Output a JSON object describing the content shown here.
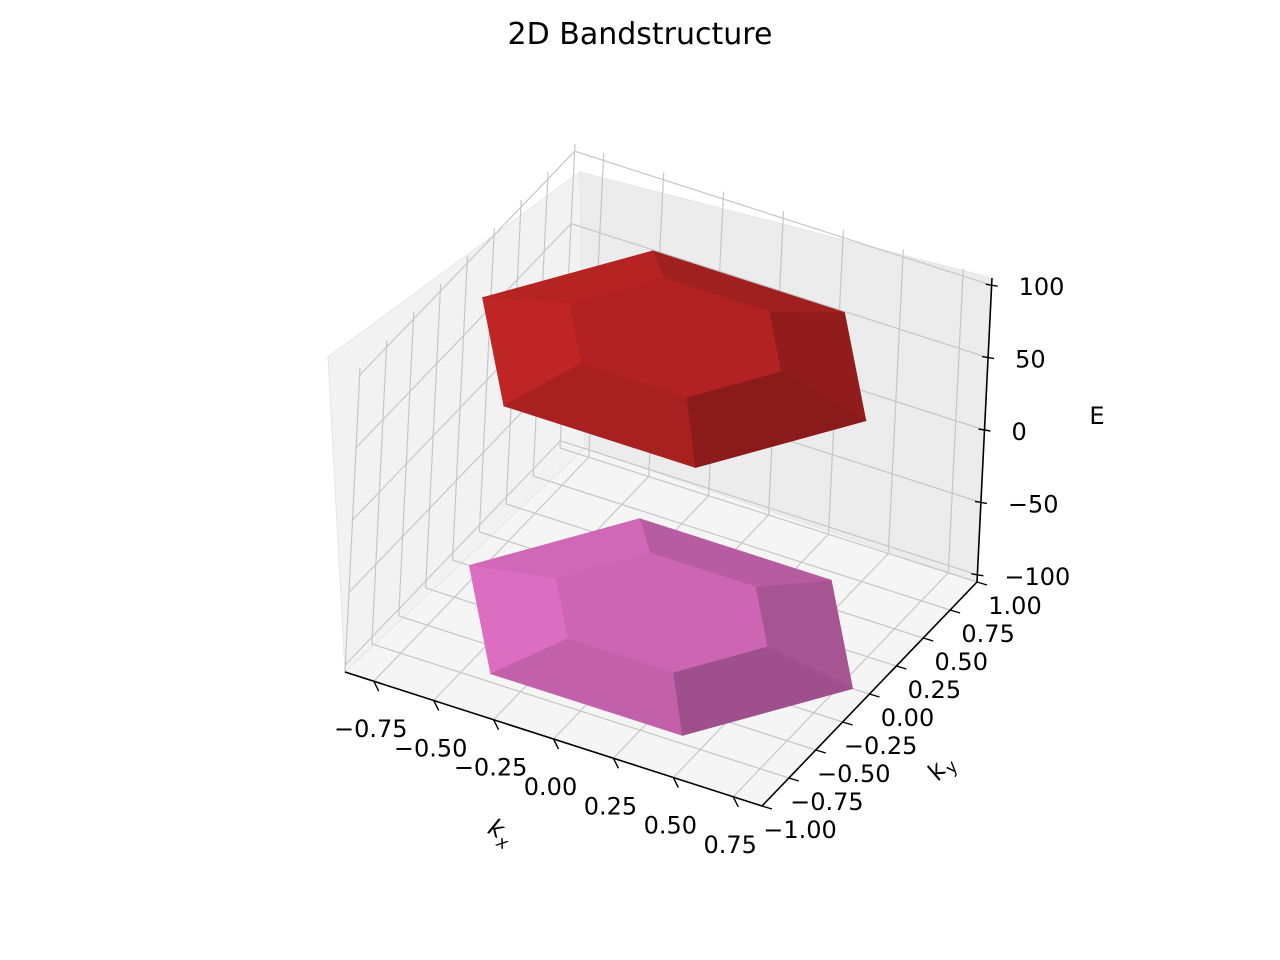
{
  "chart_data": {
    "type": "surface",
    "title": "2D Bandstructure",
    "xlabel": "k_x",
    "ylabel": "k_y",
    "zlabel": "E",
    "xlim": [
      -0.87,
      0.87
    ],
    "ylim": [
      -1.0,
      1.0
    ],
    "zlim": [
      -105,
      105
    ],
    "x_ticks": [
      "−0.75",
      "−0.50",
      "−0.25",
      "0.00",
      "0.25",
      "0.50",
      "0.75"
    ],
    "y_ticks": [
      "−1.00",
      "−0.75",
      "−0.50",
      "−0.25",
      "0.00",
      "0.25",
      "0.50",
      "0.75",
      "1.00"
    ],
    "z_ticks": [
      "−100",
      "−50",
      "0",
      "50",
      "100"
    ],
    "grid": true,
    "series": [
      {
        "color": "#b22222",
        "surface_shape": "hexagon",
        "center_energy": 95,
        "edge_energy": 80
      },
      {
        "color": "#cc66b3",
        "surface_shape": "hexagon",
        "center_energy": -95,
        "edge_energy": -105
      }
    ]
  }
}
